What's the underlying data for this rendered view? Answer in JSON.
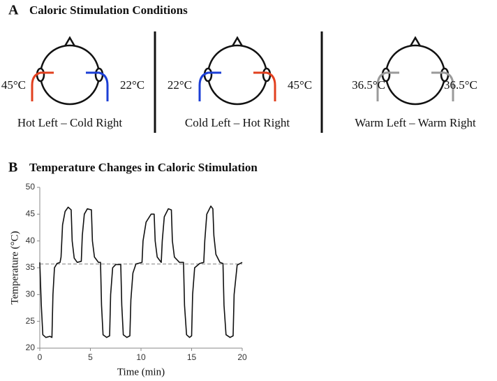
{
  "panel_a": {
    "letter": "A",
    "title": "Caloric Stimulation Conditions",
    "conditions": [
      {
        "left_temp": "45°C",
        "right_temp": "22°C",
        "label": "Hot Left – Cold Right",
        "left_color": "#e2401f",
        "right_color": "#1c3fd6"
      },
      {
        "left_temp": "22°C",
        "right_temp": "45°C",
        "label": "Cold Left – Hot Right",
        "left_color": "#1c3fd6",
        "right_color": "#e2401f"
      },
      {
        "left_temp": "36.5°C",
        "right_temp": "36.5°C",
        "label": "Warm Left – Warm Right",
        "left_color": "#9a9a9a",
        "right_color": "#9a9a9a"
      }
    ]
  },
  "panel_b_letter": "B",
  "chart_data": {
    "type": "line",
    "title": "Temperature Changes in Caloric Stimulation",
    "x_label": "Time (min)",
    "y_label": "Temperature (°C)",
    "color": "#111111",
    "x": [
      0,
      0.15,
      0.3,
      0.6,
      1.0,
      1.2,
      1.3,
      1.45,
      1.7,
      2.0,
      2.1,
      2.25,
      2.5,
      2.8,
      3.1,
      3.2,
      3.4,
      3.7,
      4.1,
      4.2,
      4.4,
      4.7,
      5.1,
      5.2,
      5.4,
      5.8,
      6.0,
      6.1,
      6.25,
      6.6,
      6.9,
      7.0,
      7.2,
      7.5,
      8.0,
      8.1,
      8.25,
      8.6,
      8.9,
      9.0,
      9.2,
      9.5,
      10.1,
      10.2,
      10.5,
      11.0,
      11.3,
      11.4,
      11.6,
      12.0,
      12.1,
      12.3,
      12.7,
      13.0,
      13.1,
      13.3,
      13.8,
      14.2,
      14.3,
      14.5,
      14.8,
      15.0,
      15.1,
      15.3,
      15.8,
      16.2,
      16.3,
      16.5,
      16.9,
      17.1,
      17.2,
      17.4,
      17.8,
      18.1,
      18.2,
      18.4,
      18.8,
      19.1,
      19.2,
      19.5,
      20
    ],
    "values": [
      36,
      28,
      22.5,
      22,
      22.2,
      22,
      30,
      35,
      35.8,
      36,
      37,
      43,
      45.5,
      46.3,
      45.8,
      40,
      36.8,
      36,
      36.2,
      41,
      45,
      46,
      45.8,
      40,
      37,
      36,
      36,
      28,
      22.5,
      22,
      22.3,
      30,
      35,
      35.6,
      35.6,
      28,
      22.5,
      22,
      22.3,
      29,
      34,
      35.7,
      36,
      40,
      43.5,
      45,
      45,
      40,
      37,
      36,
      40,
      44.5,
      46,
      45.8,
      40,
      37,
      36,
      36,
      28,
      22.5,
      22,
      22.3,
      30,
      35,
      35.8,
      36,
      40,
      45,
      46.5,
      46,
      41,
      37.5,
      36,
      35.8,
      28,
      22.5,
      22,
      22.3,
      30,
      35.5,
      36
    ],
    "reference_line": {
      "value": 35.7,
      "color": "#999999"
    },
    "xlim": [
      0,
      20
    ],
    "xticks": [
      0,
      5,
      10,
      15,
      20
    ],
    "ylim": [
      20,
      50
    ],
    "yticks": [
      20,
      25,
      30,
      35,
      40,
      45,
      50
    ]
  }
}
